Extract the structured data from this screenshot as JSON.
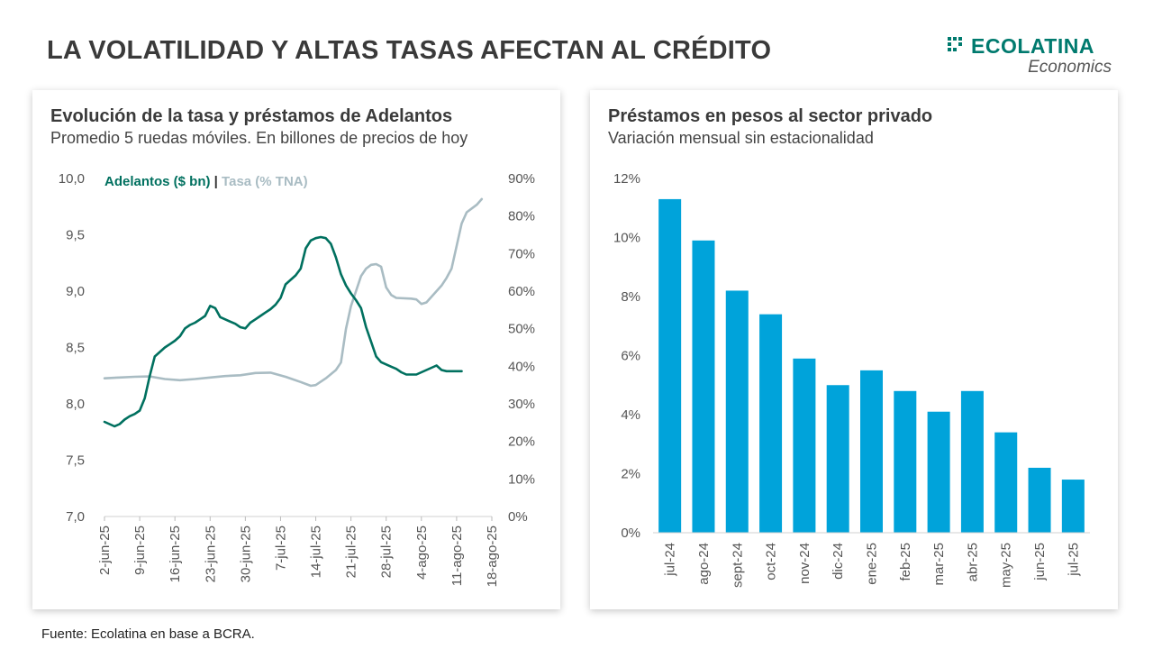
{
  "header": {
    "title": "LA VOLATILIDAD Y ALTAS TASAS AFECTAN AL CRÉDITO",
    "brand_name": "ECOLATINA",
    "brand_sub": "Economics",
    "brand_color": "#007a6e"
  },
  "left_panel": {
    "title": "Evolución de la tasa y préstamos de Adelantos",
    "subtitle": "Promedio 5 ruedas móviles. En billones de precios de hoy"
  },
  "right_panel": {
    "title": "Préstamos en pesos al sector privado",
    "subtitle": "Variación mensual sin estacionalidad"
  },
  "footer": {
    "source": "Fuente: Ecolatina en base a BCRA."
  },
  "chart_data": [
    {
      "type": "line",
      "title": "Evolución de la tasa y préstamos de Adelantos",
      "subtitle": "Promedio 5 ruedas móviles. En billones de precios de hoy",
      "x_ticks": [
        "2-jun-25",
        "9-jun-25",
        "16-jun-25",
        "23-jun-25",
        "30-jun-25",
        "7-jul-25",
        "14-jul-25",
        "21-jul-25",
        "28-jul-25",
        "4-ago-25",
        "11-ago-25",
        "18-ago-25"
      ],
      "x_range": [
        0,
        77
      ],
      "y_left": {
        "range": [
          7.0,
          10.0
        ],
        "ticks": [
          "7,0",
          "7,5",
          "8,0",
          "8,5",
          "9,0",
          "9,5",
          "10,0"
        ]
      },
      "y_right": {
        "range": [
          0,
          90
        ],
        "ticks": [
          "0%",
          "10%",
          "20%",
          "30%",
          "40%",
          "50%",
          "60%",
          "70%",
          "80%",
          "90%"
        ]
      },
      "grid": false,
      "legend_placement": "top-left",
      "legend_separator": "|",
      "series": [
        {
          "name": "Adelantos ($ bn)",
          "axis": "left",
          "color": "#00705f",
          "points": [
            [
              0,
              7.84
            ],
            [
              1,
              7.82
            ],
            [
              2,
              7.8
            ],
            [
              3,
              7.82
            ],
            [
              4,
              7.86
            ],
            [
              5,
              7.89
            ],
            [
              6,
              7.91
            ],
            [
              7,
              7.94
            ],
            [
              8,
              8.05
            ],
            [
              9,
              8.25
            ],
            [
              10,
              8.42
            ],
            [
              11,
              8.46
            ],
            [
              12,
              8.5
            ],
            [
              13,
              8.53
            ],
            [
              14,
              8.56
            ],
            [
              15,
              8.6
            ],
            [
              16,
              8.67
            ],
            [
              17,
              8.7
            ],
            [
              18,
              8.72
            ],
            [
              19,
              8.75
            ],
            [
              20,
              8.78
            ],
            [
              21,
              8.87
            ],
            [
              22,
              8.85
            ],
            [
              23,
              8.77
            ],
            [
              24,
              8.75
            ],
            [
              25,
              8.73
            ],
            [
              26,
              8.71
            ],
            [
              27,
              8.68
            ],
            [
              28,
              8.67
            ],
            [
              29,
              8.72
            ],
            [
              30,
              8.75
            ],
            [
              31,
              8.78
            ],
            [
              32,
              8.81
            ],
            [
              33,
              8.84
            ],
            [
              34,
              8.88
            ],
            [
              35,
              8.94
            ],
            [
              36,
              9.06
            ],
            [
              37,
              9.1
            ],
            [
              38,
              9.14
            ],
            [
              39,
              9.2
            ],
            [
              40,
              9.38
            ],
            [
              41,
              9.45
            ],
            [
              42,
              9.47
            ],
            [
              43,
              9.48
            ],
            [
              44,
              9.47
            ],
            [
              45,
              9.42
            ],
            [
              46,
              9.3
            ],
            [
              47,
              9.15
            ],
            [
              48,
              9.05
            ],
            [
              49,
              8.98
            ],
            [
              50,
              8.92
            ],
            [
              51,
              8.85
            ],
            [
              52,
              8.68
            ],
            [
              53,
              8.55
            ],
            [
              54,
              8.42
            ],
            [
              55,
              8.37
            ],
            [
              56,
              8.35
            ],
            [
              57,
              8.33
            ],
            [
              58,
              8.31
            ],
            [
              59,
              8.28
            ],
            [
              60,
              8.26
            ],
            [
              61,
              8.26
            ],
            [
              62,
              8.26
            ],
            [
              63,
              8.28
            ],
            [
              64,
              8.3
            ],
            [
              65,
              8.32
            ],
            [
              66,
              8.34
            ],
            [
              67,
              8.3
            ],
            [
              68,
              8.29
            ],
            [
              69,
              8.29
            ],
            [
              70,
              8.29
            ],
            [
              71,
              8.29
            ]
          ]
        },
        {
          "name": "Tasa (% TNA)",
          "axis": "right",
          "color": "#a9bcc3",
          "points": [
            [
              0,
              36.8
            ],
            [
              3,
              37.0
            ],
            [
              6,
              37.2
            ],
            [
              9,
              37.3
            ],
            [
              12,
              36.6
            ],
            [
              15,
              36.3
            ],
            [
              18,
              36.6
            ],
            [
              21,
              37.0
            ],
            [
              24,
              37.4
            ],
            [
              27,
              37.6
            ],
            [
              30,
              38.2
            ],
            [
              33,
              38.3
            ],
            [
              36,
              37.2
            ],
            [
              39,
              35.8
            ],
            [
              41,
              34.8
            ],
            [
              42,
              35.0
            ],
            [
              44,
              36.8
            ],
            [
              46,
              39.0
            ],
            [
              47,
              41.0
            ],
            [
              48,
              50.0
            ],
            [
              49,
              56.0
            ],
            [
              50,
              60.0
            ],
            [
              51,
              64.0
            ],
            [
              52,
              66.0
            ],
            [
              53,
              67.0
            ],
            [
              54,
              67.2
            ],
            [
              55,
              66.5
            ],
            [
              56,
              61.0
            ],
            [
              57,
              59.0
            ],
            [
              58,
              58.2
            ],
            [
              61,
              58.0
            ],
            [
              62,
              57.8
            ],
            [
              63,
              56.6
            ],
            [
              64,
              57.0
            ],
            [
              65,
              58.5
            ],
            [
              66,
              60.0
            ],
            [
              67,
              61.5
            ],
            [
              68,
              63.5
            ],
            [
              69,
              66.0
            ],
            [
              70,
              72.0
            ],
            [
              71,
              78.0
            ],
            [
              72,
              81.0
            ],
            [
              73,
              82.0
            ],
            [
              74,
              83.0
            ],
            [
              75,
              84.5
            ]
          ]
        }
      ]
    },
    {
      "type": "bar",
      "title": "Préstamos en pesos al sector privado",
      "subtitle": "Variación mensual sin estacionalidad",
      "categories": [
        "jul-24",
        "ago-24",
        "sept-24",
        "oct-24",
        "nov-24",
        "dic-24",
        "ene-25",
        "feb-25",
        "mar-25",
        "abr-25",
        "may-25",
        "jun-25",
        "jul-25"
      ],
      "values": [
        11.3,
        9.9,
        8.2,
        7.4,
        5.9,
        5.0,
        5.5,
        4.8,
        4.1,
        4.8,
        3.4,
        2.2,
        1.8
      ],
      "unit": "%",
      "ylim": [
        0,
        12
      ],
      "y_ticks": [
        "0%",
        "2%",
        "4%",
        "6%",
        "8%",
        "10%",
        "12%"
      ],
      "bar_color": "#00a3da",
      "grid": false,
      "legend_placement": "none"
    }
  ]
}
